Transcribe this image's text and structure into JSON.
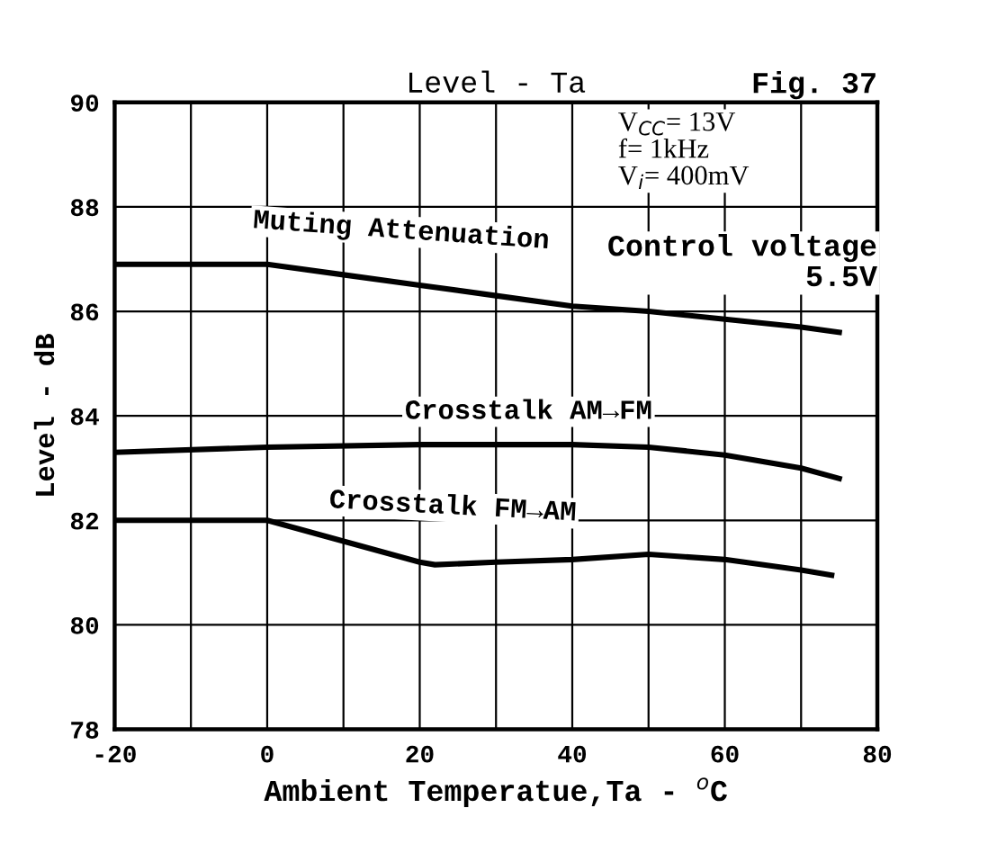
{
  "chart_data": {
    "type": "line",
    "title": "Level - Ta",
    "xlabel": "Ambient Temperatue,Ta - $^{o}$C",
    "ylabel": "Level - dB",
    "annotations": [
      "Fig. 37",
      "V$_{CC}$= 13V\nf= 1kHz\nV$_{i}$= 400mV",
      "Control voltage\n5.5V"
    ],
    "series": [
      {
        "name": "Muting Attenuation",
        "color": "#000000",
        "x": [
          -20,
          0,
          10,
          20,
          30,
          40,
          50,
          60,
          70,
          75
        ],
        "values": [
          86.9,
          86.9,
          86.7,
          86.5,
          86.3,
          86.1,
          86.0,
          85.85,
          85.7,
          85.6
        ]
      },
      {
        "name": "Crosstalk AM→FM",
        "color": "#000000",
        "x": [
          -20,
          0,
          20,
          40,
          50,
          60,
          70,
          75
        ],
        "values": [
          83.3,
          83.4,
          83.45,
          83.45,
          83.4,
          83.25,
          83.0,
          82.8
        ]
      },
      {
        "name": "Crosstalk FM→AM",
        "color": "#000000",
        "x": [
          -20,
          0,
          10,
          20,
          22,
          30,
          40,
          50,
          60,
          70,
          74
        ],
        "values": [
          82.0,
          82.0,
          81.6,
          81.2,
          81.15,
          81.2,
          81.25,
          81.35,
          81.25,
          81.05,
          80.95
        ]
      }
    ],
    "xlim": [
      -20,
      80
    ],
    "xticks": [
      -20,
      {
        "value": -10,
        "label": null
      },
      0,
      {
        "value": 10,
        "label": null
      },
      20,
      {
        "value": 30,
        "label": null
      },
      40,
      {
        "value": 50,
        "label": null
      },
      60,
      {
        "value": 70,
        "label": null
      },
      80
    ],
    "ylim": [
      78,
      90
    ],
    "yticks": [
      78,
      80,
      82,
      84,
      86,
      88,
      90
    ],
    "grid": true,
    "legend": false,
    "line_style": "solid",
    "marker": "none"
  }
}
